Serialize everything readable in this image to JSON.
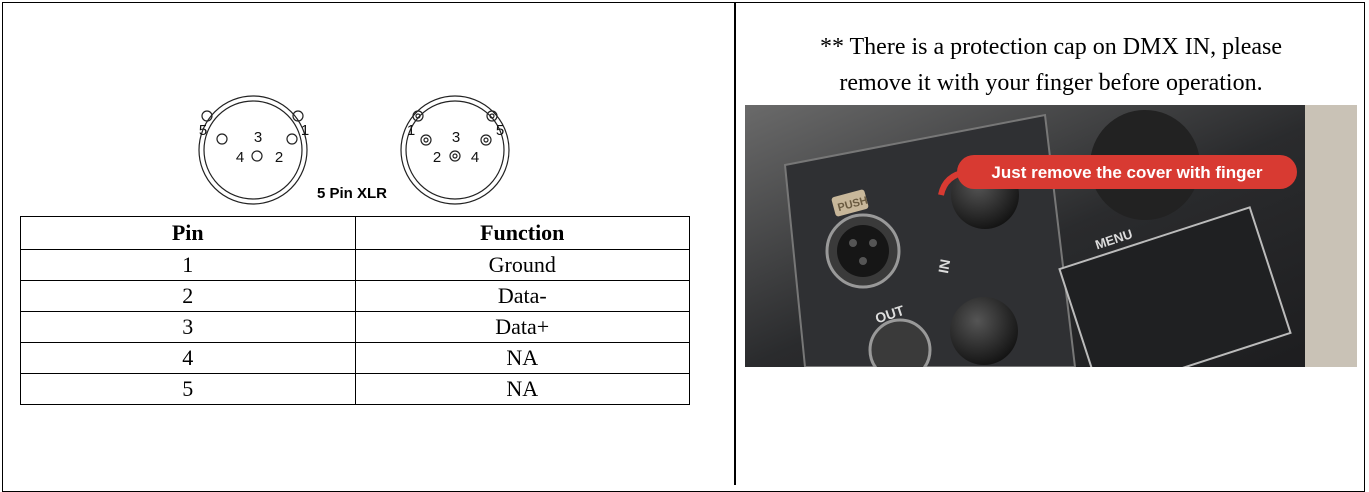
{
  "diagram": {
    "left_pins": [
      "5",
      "1",
      "3",
      "4",
      "2"
    ],
    "right_pins": [
      "1",
      "5",
      "3",
      "2",
      "4"
    ],
    "caption": "5 Pin XLR"
  },
  "table": {
    "header": [
      "Pin",
      "Function"
    ],
    "rows": [
      [
        "1",
        "Ground"
      ],
      [
        "2",
        "Data-"
      ],
      [
        "3",
        "Data+"
      ],
      [
        "4",
        "NA"
      ],
      [
        "5",
        "NA"
      ]
    ]
  },
  "note": [
    "** There is a protection cap on DMX IN, please",
    "remove it with your finger before operation."
  ],
  "photo": {
    "callout": "Just remove the cover with finger",
    "labels": [
      "PUSH",
      "IN",
      "OUT",
      "MENU"
    ]
  }
}
